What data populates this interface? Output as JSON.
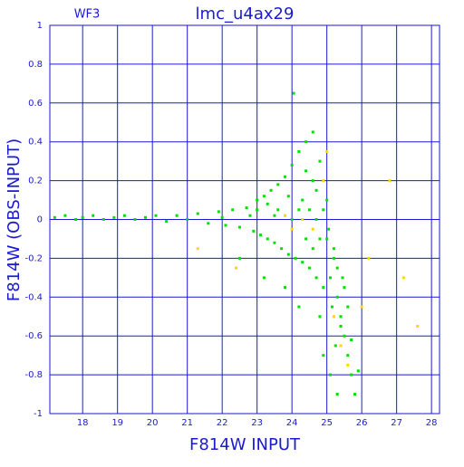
{
  "chart_data": {
    "type": "scatter",
    "title": "lmc_u4ax29",
    "subtitle": "WF3",
    "x_label": "F814W INPUT",
    "y_label": "F814W (OBS-INPUT)",
    "xlim": [
      17.06,
      28.23
    ],
    "ylim": [
      -1,
      1
    ],
    "xticks": [
      18,
      19,
      20,
      21,
      22,
      23,
      24,
      25,
      26,
      27,
      28
    ],
    "yticks": [
      -1,
      -0.8,
      -0.6,
      -0.4,
      -0.2,
      0,
      0.2,
      0.4,
      0.6,
      0.8,
      1
    ],
    "grid": true,
    "series": [
      {
        "color": "#00e000",
        "x": [
          17.2,
          17.5,
          17.8,
          18.0,
          18.3,
          18.6,
          18.9,
          19.2,
          19.5,
          19.8,
          20.1,
          20.4,
          20.7,
          21.0,
          21.3,
          21.6,
          21.9,
          22.1,
          22.3,
          22.5,
          22.7,
          22.9,
          23.0,
          23.1,
          23.2,
          23.3,
          23.4,
          23.5,
          23.6,
          23.7,
          23.8,
          23.9,
          24.0,
          24.1,
          24.2,
          24.3,
          24.4,
          24.5,
          24.6,
          24.7,
          24.8,
          24.9,
          25.0,
          25.1,
          25.2,
          25.3,
          25.4,
          25.5,
          25.6,
          25.7,
          25.8,
          24.05,
          23.0,
          23.5,
          24.0,
          24.5,
          25.0,
          25.2,
          24.8,
          24.2,
          23.8,
          23.2,
          22.5,
          25.3,
          25.5,
          25.6,
          25.4,
          25.7,
          25.9,
          25.3,
          24.9,
          25.1,
          24.6,
          24.4,
          24.7,
          24.3,
          24.9,
          24.8,
          24.6,
          22.0,
          22.8,
          23.6,
          24.2,
          24.7,
          25.05,
          23.3,
          23.9,
          24.4,
          25.15,
          25.45,
          25.25
        ],
        "values": [
          0.01,
          0.02,
          0.0,
          0.01,
          0.02,
          0.0,
          0.01,
          0.02,
          0.0,
          0.01,
          0.02,
          -0.01,
          0.02,
          0.0,
          0.03,
          -0.02,
          0.04,
          -0.03,
          0.05,
          -0.04,
          0.06,
          -0.06,
          0.1,
          -0.08,
          0.12,
          -0.1,
          0.15,
          -0.12,
          0.18,
          -0.15,
          0.22,
          -0.18,
          0.28,
          -0.2,
          0.35,
          -0.22,
          0.4,
          -0.25,
          0.45,
          -0.3,
          0.3,
          -0.35,
          0.1,
          -0.3,
          -0.2,
          -0.4,
          -0.5,
          -0.6,
          -0.7,
          -0.8,
          -0.9,
          0.65,
          0.05,
          0.02,
          0.0,
          0.05,
          -0.1,
          -0.15,
          -0.5,
          -0.45,
          -0.35,
          -0.3,
          -0.2,
          -0.25,
          -0.35,
          -0.45,
          -0.55,
          -0.62,
          -0.78,
          -0.9,
          -0.7,
          -0.8,
          0.2,
          0.25,
          0.15,
          0.1,
          0.05,
          -0.1,
          -0.15,
          0.01,
          0.02,
          0.05,
          0.05,
          0.0,
          -0.05,
          0.08,
          0.12,
          -0.1,
          -0.45,
          -0.3,
          -0.65
        ]
      },
      {
        "color": "#ffd700",
        "x": [
          24.3,
          24.6,
          23.8,
          25.2,
          25.6,
          26.2,
          26.8,
          27.2,
          22.4,
          24.0,
          25.4,
          26.0,
          27.6,
          21.3,
          25.0,
          24.9
        ],
        "values": [
          0.0,
          -0.05,
          0.02,
          -0.5,
          -0.75,
          -0.2,
          0.2,
          -0.3,
          -0.25,
          -0.05,
          -0.65,
          -0.45,
          -0.55,
          -0.15,
          0.35,
          0.2
        ]
      }
    ]
  }
}
